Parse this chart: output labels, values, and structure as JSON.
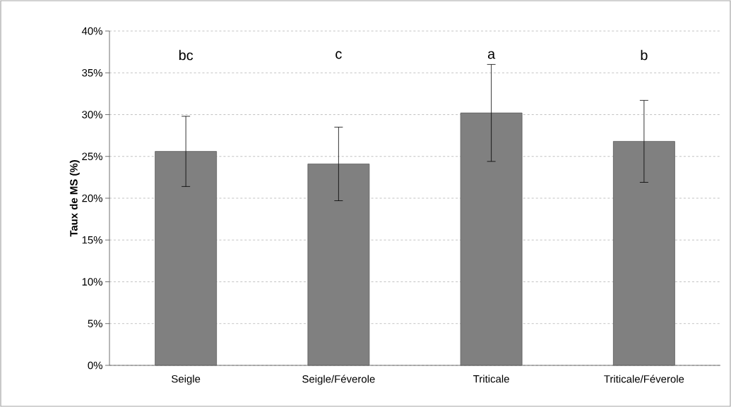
{
  "chart_data": {
    "type": "bar",
    "categories": [
      "Seigle",
      "Seigle/Féverole",
      "Triticale",
      "Triticale/Féverole"
    ],
    "values": [
      25.6,
      24.1,
      30.2,
      26.8
    ],
    "errors": [
      4.2,
      4.4,
      5.8,
      4.9
    ],
    "color": "#808080",
    "ylabel": "Taux de MS (%)",
    "ylim": [
      0,
      40
    ],
    "yticks": [
      {
        "value": 0,
        "label": "0%"
      },
      {
        "value": 5,
        "label": "5%"
      },
      {
        "value": 10,
        "label": "10%"
      },
      {
        "value": 15,
        "label": "15%"
      },
      {
        "value": 20,
        "label": "20%"
      },
      {
        "value": 25,
        "label": "25%"
      },
      {
        "value": 30,
        "label": "30%"
      },
      {
        "value": 35,
        "label": "35%"
      },
      {
        "value": 40,
        "label": "40%"
      }
    ],
    "grid": "y",
    "annotations": [
      "bc",
      "c",
      "a",
      "b"
    ]
  }
}
